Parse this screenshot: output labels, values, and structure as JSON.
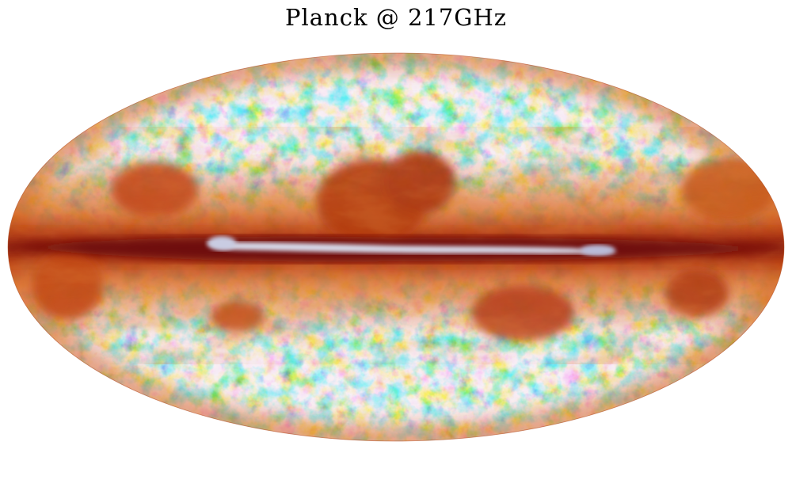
{
  "figure": {
    "title": "Planck @ 217GHz",
    "projection": "mollweide",
    "palette": {
      "deep_blue": "#1a5fd6",
      "light_blue": "#6ec3ea",
      "pale_yellow": "#f3e28a",
      "orange": "#e07a1c",
      "dark_orange": "#c0440e",
      "dark_red": "#7d120f",
      "plane_white": "#d8dcec"
    }
  }
}
